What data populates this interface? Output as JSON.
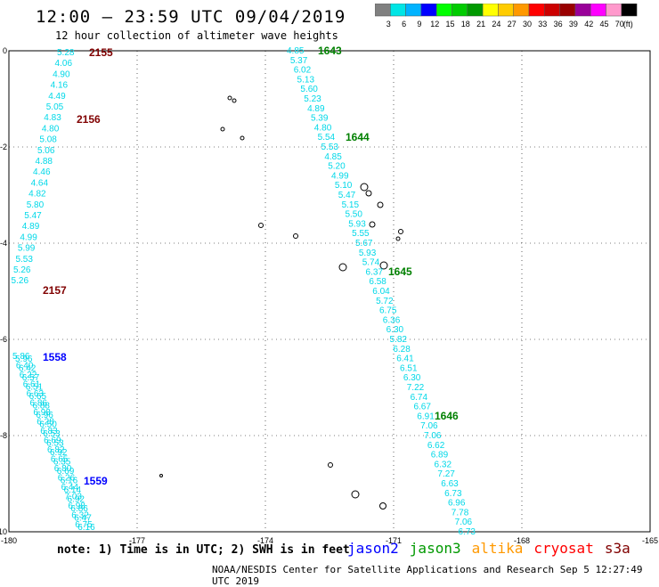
{
  "header": {
    "title": "12:00 – 23:59 UTC 09/04/2019",
    "subtitle": "12 hour collection of altimeter wave heights"
  },
  "colorbar": {
    "unit": "(ft)",
    "bins": [
      {
        "label": "3",
        "color": "#808080"
      },
      {
        "label": "6",
        "color": "#00e5e5"
      },
      {
        "label": "9",
        "color": "#00b3ff"
      },
      {
        "label": "12",
        "color": "#0000ff"
      },
      {
        "label": "15",
        "color": "#00ff00"
      },
      {
        "label": "18",
        "color": "#00cc00"
      },
      {
        "label": "21",
        "color": "#009900"
      },
      {
        "label": "24",
        "color": "#ffff00"
      },
      {
        "label": "27",
        "color": "#ffcc00"
      },
      {
        "label": "30",
        "color": "#ff9900"
      },
      {
        "label": "33",
        "color": "#ff0000"
      },
      {
        "label": "36",
        "color": "#cc0000"
      },
      {
        "label": "39",
        "color": "#990000"
      },
      {
        "label": "42",
        "color": "#990099"
      },
      {
        "label": "45",
        "color": "#ff00ff"
      },
      {
        "label": "70",
        "color": "#ff99cc"
      },
      {
        "label": "",
        "color": "#000000"
      }
    ]
  },
  "axes": {
    "x_ticks": [
      "-180",
      "-177",
      "-174",
      "-171",
      "-168",
      "-165"
    ],
    "y_ticks": [
      "0",
      "-2",
      "-4",
      "-6",
      "-8",
      "-10"
    ]
  },
  "colors": {
    "track": "#00d8e8",
    "s3a_time": "#800000",
    "jason3_time": "#008000",
    "jason2_time": "#0000ff"
  },
  "tracks": {
    "west": {
      "values": [
        "5.28",
        "4.06",
        "4.90",
        "4.16",
        "4.49",
        "5.05",
        "4.83",
        "4.80",
        "5.08",
        "5.06",
        "4.88",
        "4.46",
        "4.64",
        "4.82",
        "5.80",
        "5.47",
        "4.89",
        "4.99",
        "5.99",
        "5.53",
        "5.26",
        "5.26"
      ],
      "times": [
        "2155",
        "2156",
        "2157"
      ]
    },
    "east": {
      "values": [
        "4.85",
        "5.37",
        "6.02",
        "5.13",
        "5.60",
        "5.23",
        "4.89",
        "5.39",
        "4.80",
        "5.54",
        "5.53",
        "4.85",
        "5.20",
        "4.99",
        "5.10",
        "5.47",
        "5.15",
        "5.50",
        "5.93",
        "5.55",
        "5.67",
        "5.93",
        "5.74",
        "6.37",
        "6.58",
        "6.04",
        "5.72",
        "6.75",
        "6.36",
        "6.30",
        "5.82",
        "6.28",
        "6.41",
        "6.51",
        "6.30",
        "7.22",
        "6.74",
        "6.67",
        "6.91",
        "7.06",
        "7.06",
        "6.62",
        "6.89",
        "6.32",
        "7.27",
        "6.63",
        "6.73",
        "6.96",
        "7.78",
        "7.06",
        "6.73"
      ],
      "times": [
        "1643",
        "1644",
        "1645",
        "1646"
      ]
    },
    "southwest": {
      "values_a": [
        "5.86",
        "6.40",
        "6.22",
        "6.61",
        "6.63",
        "6.86",
        "6.98",
        "6.28",
        "6.83",
        "6.69",
        "6.82",
        "6.65",
        "6.80",
        "6.26",
        "6.44",
        "7.03",
        "6.98",
        "6.32",
        "6.75"
      ],
      "values_b": [
        "5.96",
        "6.42",
        "6.57",
        "6.51",
        "6.65",
        "6.88",
        "6.96",
        "6.50",
        "6.53",
        "6.53",
        "6.92",
        "6.35",
        "6.69",
        "6.16",
        "6.14",
        "6.92",
        "6.86",
        "6.47",
        "6.16"
      ],
      "times": [
        "1558",
        "1559"
      ]
    }
  },
  "footer": {
    "note": "note:  1) Time is in UTC;  2) SWH is in feet",
    "satellites": [
      {
        "name": "jason2",
        "color": "#0000ff"
      },
      {
        "name": "jason3",
        "color": "#009900"
      },
      {
        "name": "altika",
        "color": "#ff9900"
      },
      {
        "name": "cryosat",
        "color": "#ff0000"
      },
      {
        "name": "s3a",
        "color": "#800000"
      }
    ],
    "credit": "NOAA/NESDIS Center for Satellite Applications and Research   Sep  5 12:27:49 UTC 2019"
  }
}
